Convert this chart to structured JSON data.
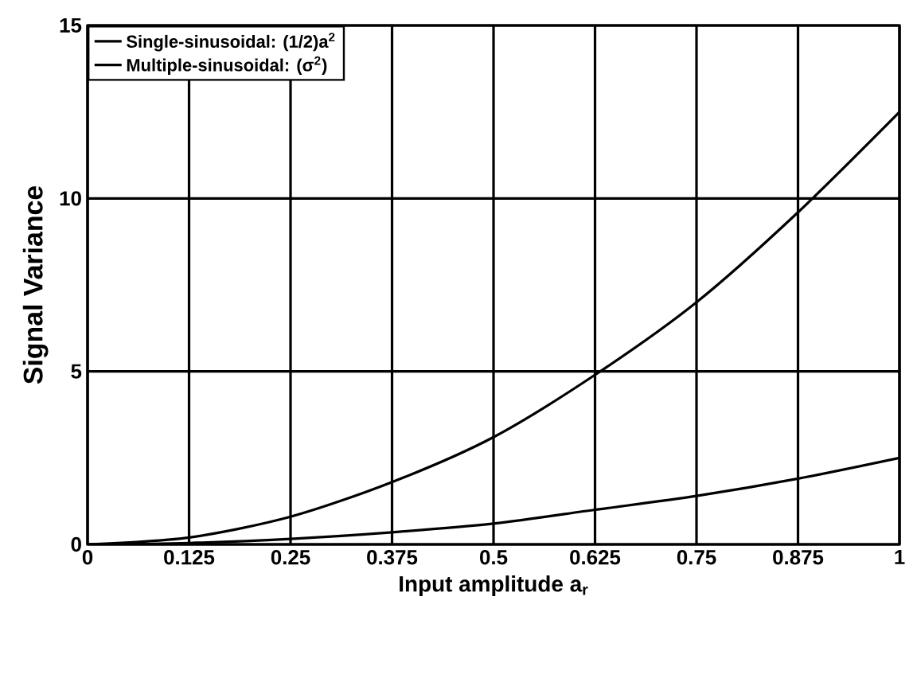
{
  "chart_data": {
    "type": "line",
    "xlabel": "Input amplitude a$_{r}$",
    "ylabel": "Signal Variance",
    "x": [
      0,
      0.125,
      0.25,
      0.375,
      0.5,
      0.625,
      0.75,
      0.875,
      1
    ],
    "series": [
      {
        "name": "Single-sinusoidal: (1/2)a$^{2}$",
        "color": "#000000",
        "values": [
          0,
          0.2,
          0.8,
          1.8,
          3.1,
          4.9,
          7.0,
          9.6,
          12.5
        ]
      },
      {
        "name": "Multiple-sinusoidal: (σ$^{2}$)",
        "color": "#000000",
        "values": [
          0,
          0.04,
          0.16,
          0.35,
          0.6,
          1.0,
          1.4,
          1.9,
          2.5
        ]
      }
    ],
    "xlim": [
      0,
      1
    ],
    "ylim": [
      0,
      15
    ],
    "xticks": [
      0,
      0.125,
      0.25,
      0.375,
      0.5,
      0.625,
      0.75,
      0.875,
      1
    ],
    "yticks": [
      0,
      5,
      10,
      15
    ],
    "grid": true,
    "legend": "top left",
    "marker": "none",
    "line_style": "solid"
  }
}
